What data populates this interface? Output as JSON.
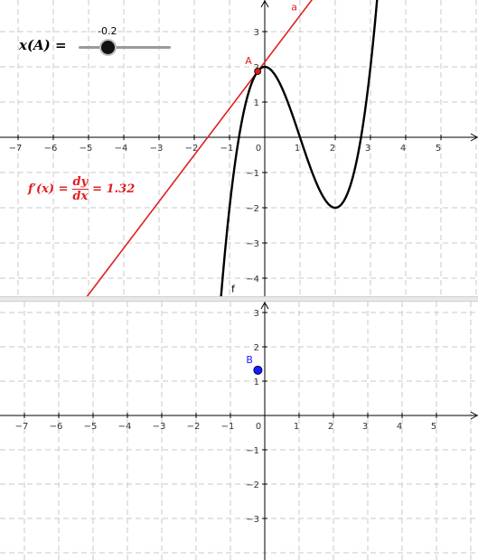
{
  "slider": {
    "label": "x(A) =",
    "value": "-0.2",
    "fraction": 0.32
  },
  "derivative": {
    "lhs": "f′(x) =",
    "num": "dy",
    "den": "dx",
    "rhs": "= 1.32"
  },
  "top_view": {
    "x_ticks": [
      "−7",
      "−6",
      "−5",
      "−4",
      "−3",
      "−2",
      "−1",
      "0",
      "1",
      "2",
      "3",
      "4",
      "5"
    ],
    "y_ticks_pos": [
      "1",
      "2",
      "3"
    ],
    "y_ticks_neg": [
      "−1",
      "−2",
      "−3",
      "−4"
    ],
    "point_label": "A",
    "line_label": "a",
    "curve_label": "f"
  },
  "bottom_view": {
    "x_ticks": [
      "−7",
      "−6",
      "−5",
      "−4",
      "−3",
      "−2",
      "−1",
      "0",
      "1",
      "2",
      "3",
      "4",
      "5"
    ],
    "y_ticks_pos": [
      "1",
      "2",
      "3"
    ],
    "y_ticks_neg": [
      "−1",
      "−2",
      "−3"
    ],
    "point_label": "B"
  },
  "colors": {
    "line": "#e02020",
    "curve": "#000000",
    "point_a": "#cc2020",
    "point_b": "#1a1aff",
    "grid": "#c8c8c8"
  }
}
